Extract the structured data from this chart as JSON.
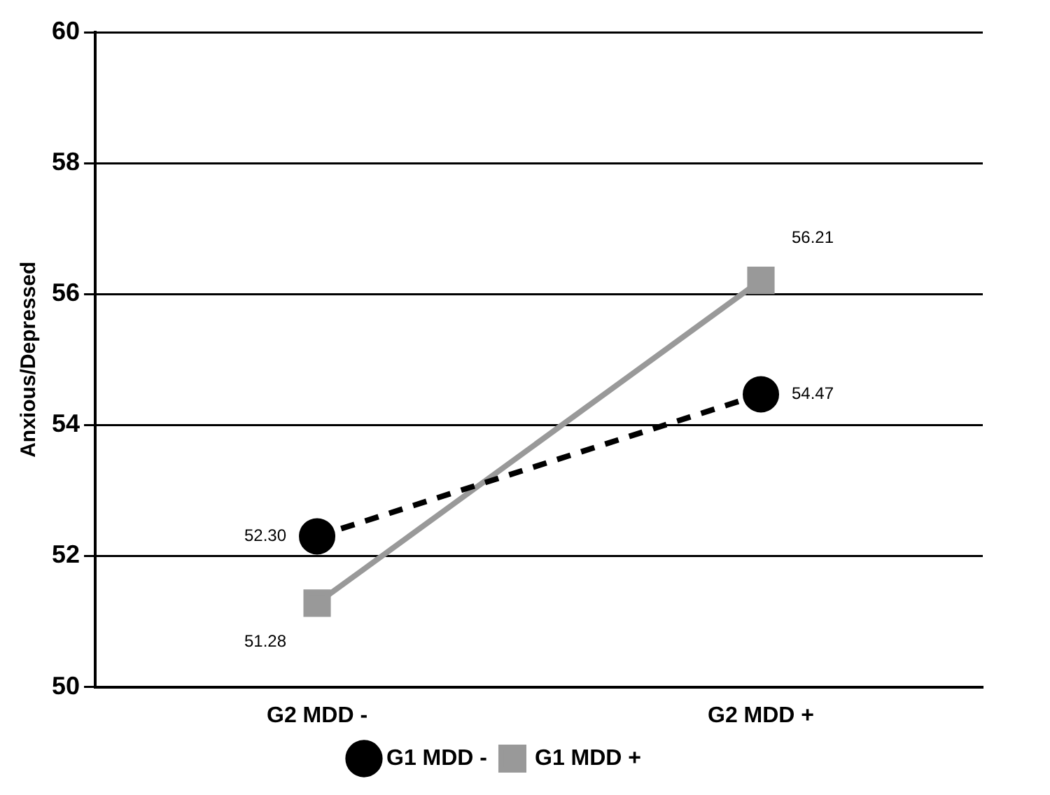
{
  "chart_data": {
    "type": "line",
    "ylabel": "Anxious/Depressed",
    "categories": [
      "G2 MDD -",
      "G2 MDD +"
    ],
    "series": [
      {
        "name": "G1 MDD -",
        "color": "#000000",
        "values": [
          52.3,
          54.47
        ],
        "value_labels": [
          "52.30",
          "54.47"
        ],
        "marker": "circle",
        "line_style": "dashed"
      },
      {
        "name": "G1 MDD +",
        "color": "#999999",
        "values": [
          51.28,
          56.21
        ],
        "value_labels": [
          "51.28",
          "56.21"
        ],
        "marker": "square",
        "line_style": "solid"
      }
    ],
    "ylim": [
      50,
      60
    ],
    "yticks": [
      50,
      52,
      54,
      56,
      58,
      60
    ],
    "grid": "y",
    "legend": "bottom"
  }
}
